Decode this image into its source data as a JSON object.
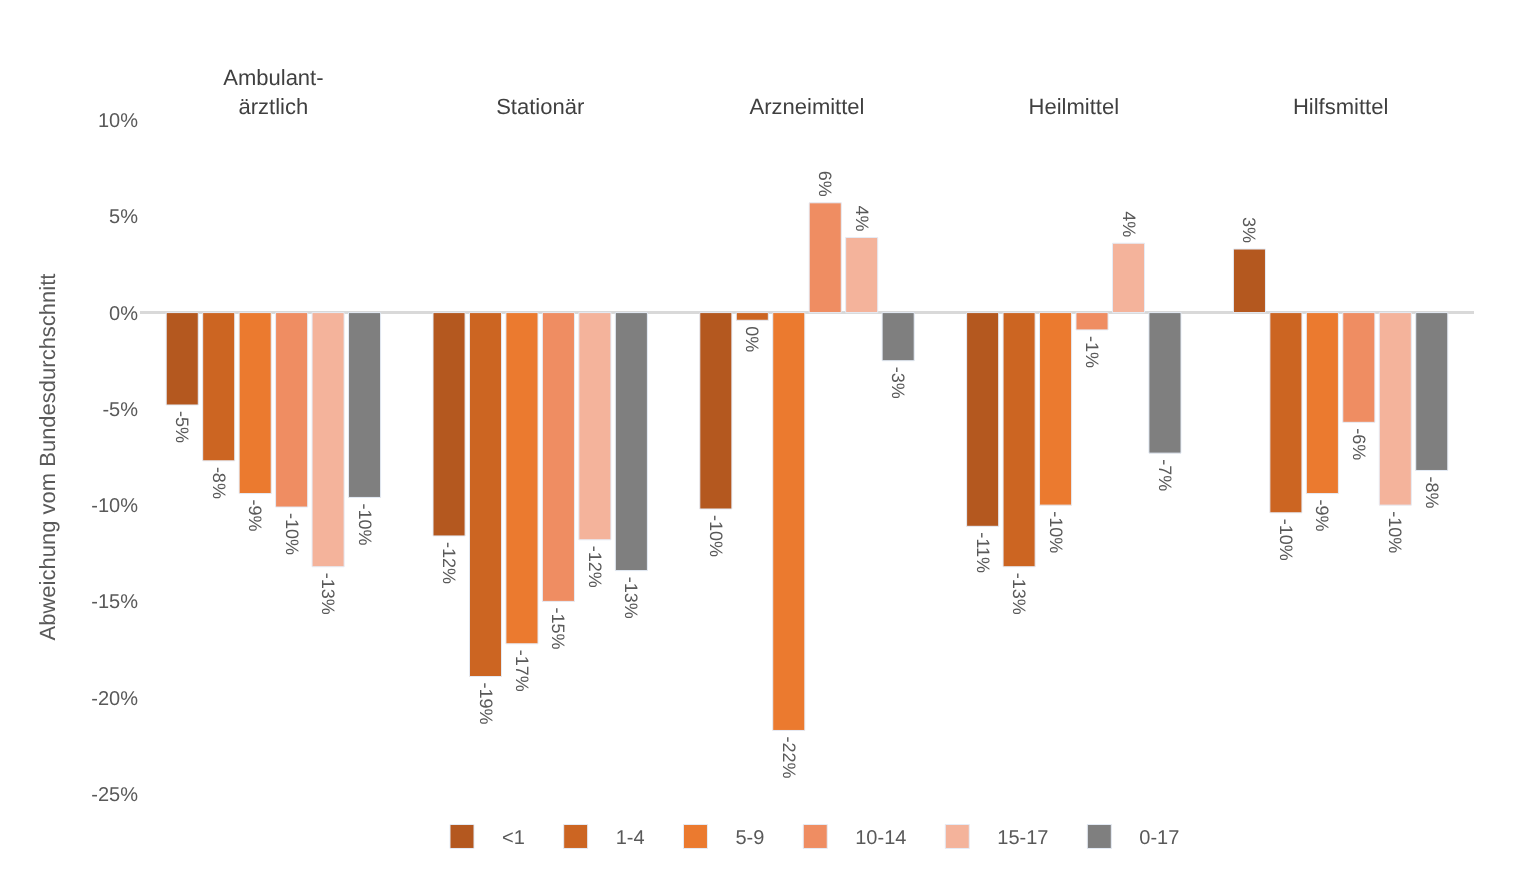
{
  "chart_data": {
    "type": "bar",
    "ylabel": "Abweichung vom Bundesdurchschnitt",
    "categories": [
      "Ambulant-\närztlich",
      "Stationär",
      "Arzneimittel",
      "Heilmittel",
      "Hilfsmittel"
    ],
    "series": [
      {
        "name": "<1",
        "color": "#b4581f",
        "values": [
          -4.8,
          -11.6,
          -10.2,
          -11.1,
          3.3
        ],
        "value_labels": [
          "-5%",
          "-12%",
          "-10%",
          "-11%",
          "3%"
        ]
      },
      {
        "name": "1-4",
        "color": "#cc6522",
        "values": [
          -7.7,
          -18.9,
          -0.4,
          -13.2,
          -10.4
        ],
        "value_labels": [
          "-8%",
          "-19%",
          "0%",
          "-13%",
          "-10%"
        ]
      },
      {
        "name": "5-9",
        "color": "#eb7a2f",
        "values": [
          -9.4,
          -17.2,
          -21.7,
          -10.0,
          -9.4
        ],
        "value_labels": [
          "-9%",
          "-17%",
          "-22%",
          "-10%",
          "-9%"
        ]
      },
      {
        "name": "10-14",
        "color": "#ef8d62",
        "values": [
          -10.1,
          -15.0,
          5.7,
          -0.9,
          -5.7
        ],
        "value_labels": [
          "-10%",
          "-15%",
          "6%",
          "-1%",
          "-6%"
        ]
      },
      {
        "name": "15-17",
        "color": "#f4b39b",
        "values": [
          -13.2,
          -11.8,
          3.9,
          3.6,
          -10.0
        ],
        "value_labels": [
          "-13%",
          "-12%",
          "4%",
          "4%",
          "-10%"
        ]
      },
      {
        "name": "0-17",
        "color": "#7f7f7f",
        "values": [
          -9.6,
          -13.4,
          -2.5,
          -7.3,
          -8.2
        ],
        "value_labels": [
          "-10%",
          "-13%",
          "-3%",
          "-7%",
          "-8%"
        ]
      }
    ],
    "ylim": [
      -25,
      10
    ],
    "yticks": [
      {
        "value": -25,
        "label": "-25%"
      },
      {
        "value": -20,
        "label": "-20%"
      },
      {
        "value": -15,
        "label": "-15%"
      },
      {
        "value": -10,
        "label": "-10%"
      },
      {
        "value": -5,
        "label": "-5%"
      },
      {
        "value": 0,
        "label": "0%"
      },
      {
        "value": 5,
        "label": "5%"
      },
      {
        "value": 10,
        "label": "10%"
      }
    ],
    "legend": "bottom"
  }
}
